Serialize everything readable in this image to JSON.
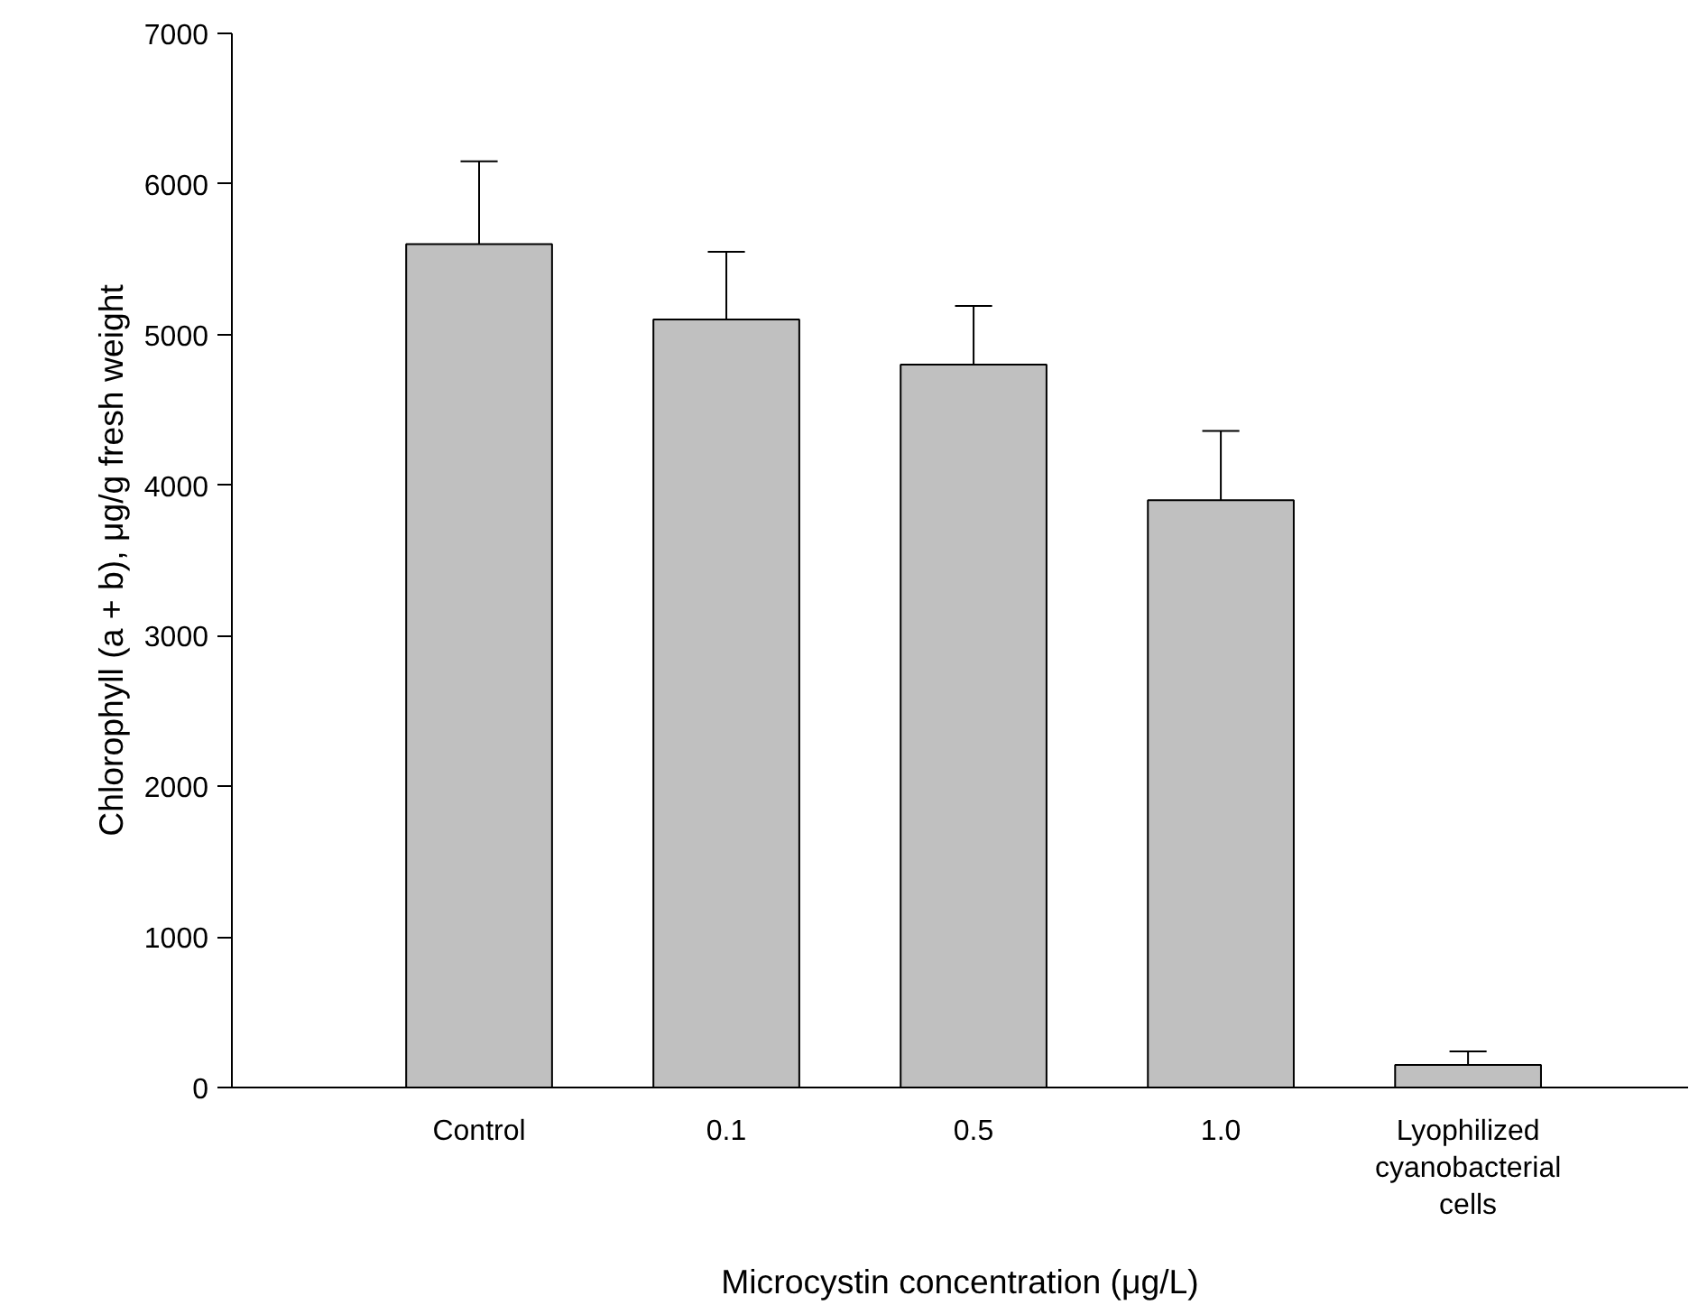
{
  "chart_data": {
    "type": "bar",
    "xlabel": "Microcystin concentration (μg/L)",
    "ylabel": "Chlorophyll (a + b), μg/g fresh weight",
    "categories": [
      "Control",
      "0.1",
      "0.5",
      "1.0",
      "Lyophilized cyanobacterial cells"
    ],
    "values": [
      5600,
      5100,
      4800,
      3900,
      150
    ],
    "errors": [
      [
        5600,
        6150
      ],
      [
        5100,
        5550
      ],
      [
        4800,
        5190
      ],
      [
        3900,
        4360
      ],
      [
        150,
        240
      ]
    ],
    "color": "#c0c0c0",
    "ylim": [
      0,
      7000
    ],
    "yticks": [
      0,
      1000,
      2000,
      3000,
      4000,
      5000,
      6000,
      7000
    ],
    "grid": false
  }
}
